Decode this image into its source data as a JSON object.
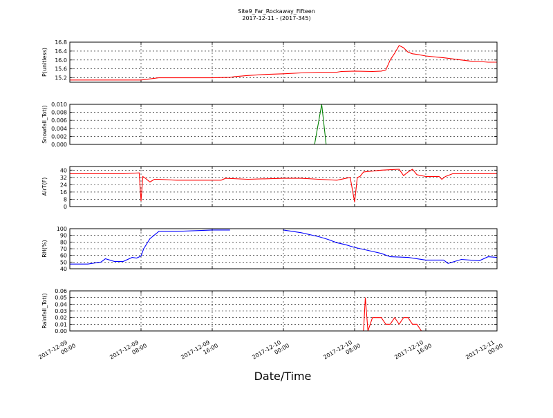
{
  "figure": {
    "title": "Site9_Far_Rockaway_Fifteen",
    "subtitle": "2017-12-11 - (2017-345)",
    "xlabel": "Date/Time"
  },
  "x_ticks": [
    {
      "label_date": "2017-12-09",
      "label_time": "00:00",
      "hour": 0
    },
    {
      "label_date": "2017-12-09",
      "label_time": "08:00",
      "hour": 8
    },
    {
      "label_date": "2017-12-09",
      "label_time": "16:00",
      "hour": 16
    },
    {
      "label_date": "2017-12-10",
      "label_time": "00:00",
      "hour": 24
    },
    {
      "label_date": "2017-12-10",
      "label_time": "08:00",
      "hour": 32
    },
    {
      "label_date": "2017-12-10",
      "label_time": "16:00",
      "hour": 40
    },
    {
      "label_date": "2017-12-11",
      "label_time": "00:00",
      "hour": 48
    }
  ],
  "chart_data": [
    {
      "type": "line",
      "ylabel": "P(unitless)",
      "ylim": [
        15.0,
        16.8
      ],
      "yticks": [
        "15.2",
        "15.6",
        "16.0",
        "16.4",
        "16.8"
      ],
      "ytick_values": [
        15.2,
        15.6,
        16.0,
        16.4,
        16.8
      ],
      "grid": true,
      "color": "#ff0000",
      "x_hours": [
        0,
        2,
        4,
        6,
        8,
        9,
        10,
        12,
        14,
        16,
        18,
        18.5,
        20,
        22,
        24,
        26,
        28,
        30,
        30.5,
        32,
        34,
        35,
        35.5,
        36,
        36.5,
        37,
        37.5,
        38,
        38.5,
        39,
        40,
        42,
        44,
        45,
        46,
        47,
        48
      ],
      "y": [
        15.1,
        15.1,
        15.1,
        15.1,
        15.1,
        15.15,
        15.2,
        15.2,
        15.2,
        15.2,
        15.22,
        15.25,
        15.3,
        15.35,
        15.38,
        15.42,
        15.45,
        15.45,
        15.48,
        15.5,
        15.48,
        15.5,
        15.55,
        16.0,
        16.3,
        16.65,
        16.55,
        16.35,
        16.28,
        16.25,
        16.18,
        16.1,
        16.0,
        15.95,
        15.93,
        15.9,
        15.9
      ]
    },
    {
      "type": "line",
      "ylabel": "Snowfall_Tot()",
      "ylim": [
        0.0,
        0.01
      ],
      "yticks": [
        "0.000",
        "0.002",
        "0.004",
        "0.006",
        "0.008",
        "0.010"
      ],
      "ytick_values": [
        0.0,
        0.002,
        0.004,
        0.006,
        0.008,
        0.01
      ],
      "grid": true,
      "color": "#008000",
      "x_hours": [
        0,
        27.5,
        28.3,
        28.8,
        48
      ],
      "y": [
        0,
        0,
        0.01,
        0,
        0
      ]
    },
    {
      "type": "line",
      "ylabel": "AirT(F)",
      "ylim": [
        0,
        44
      ],
      "yticks": [
        "0",
        "8",
        "16",
        "24",
        "32",
        "40"
      ],
      "ytick_values": [
        0,
        8,
        16,
        24,
        32,
        40
      ],
      "grid": true,
      "color": "#ff0000",
      "x_hours": [
        0,
        6,
        7.8,
        8.0,
        8.2,
        8.5,
        9,
        9.5,
        10,
        12,
        14,
        17,
        17.5,
        20,
        24,
        26,
        28,
        30,
        31.5,
        32.0,
        32.3,
        32.6,
        33,
        35,
        37,
        37.5,
        38,
        38.5,
        39,
        40,
        41.5,
        41.8,
        42.2,
        43,
        48
      ],
      "y": [
        36,
        36,
        37,
        6,
        33,
        31,
        27,
        30,
        30,
        29,
        29,
        29,
        31,
        30,
        31,
        31,
        30,
        29,
        32,
        5,
        32,
        33,
        38,
        40,
        41,
        34,
        38,
        41,
        35,
        33,
        33,
        30,
        33,
        36,
        36
      ]
    },
    {
      "type": "line",
      "ylabel": "RH(%)",
      "ylim": [
        40,
        100
      ],
      "yticks": [
        "40",
        "50",
        "60",
        "70",
        "80",
        "90",
        "100"
      ],
      "ytick_values": [
        40,
        50,
        60,
        70,
        80,
        90,
        100
      ],
      "grid": true,
      "color": "#0000ff",
      "x_hours": [
        0,
        2,
        3.5,
        4,
        5,
        6,
        7,
        7.5,
        8,
        8.3,
        9,
        10,
        12,
        14,
        16,
        18,
        24,
        26,
        28,
        29,
        30,
        31,
        32,
        34,
        35,
        36,
        38,
        40,
        42,
        42.5,
        44,
        46,
        47,
        48
      ],
      "y": [
        47,
        47,
        50,
        55,
        51,
        51,
        57,
        56,
        59,
        70,
        85,
        96,
        96,
        97,
        98,
        98,
        98,
        94,
        88,
        84,
        79,
        76,
        72,
        66,
        63,
        58,
        57,
        53,
        53,
        48,
        54,
        52,
        58,
        57
      ],
      "gaps_after_hour": [
        18
      ]
    },
    {
      "type": "line",
      "ylabel": "Rainfall_Tot()",
      "ylim": [
        0.0,
        0.06
      ],
      "yticks": [
        "0.00",
        "0.01",
        "0.02",
        "0.03",
        "0.04",
        "0.05",
        "0.06"
      ],
      "ytick_values": [
        0.0,
        0.01,
        0.02,
        0.03,
        0.04,
        0.05,
        0.06
      ],
      "grid": true,
      "color": "#ff0000",
      "x_hours": [
        0,
        33,
        33.2,
        33.5,
        34,
        35,
        35.5,
        36,
        36.5,
        37,
        37.5,
        38,
        38.5,
        39,
        39.5,
        40,
        48
      ],
      "y": [
        0,
        0,
        0.05,
        0,
        0.02,
        0.02,
        0.01,
        0.01,
        0.02,
        0.01,
        0.02,
        0.02,
        0.01,
        0.01,
        0,
        0,
        0
      ]
    }
  ]
}
